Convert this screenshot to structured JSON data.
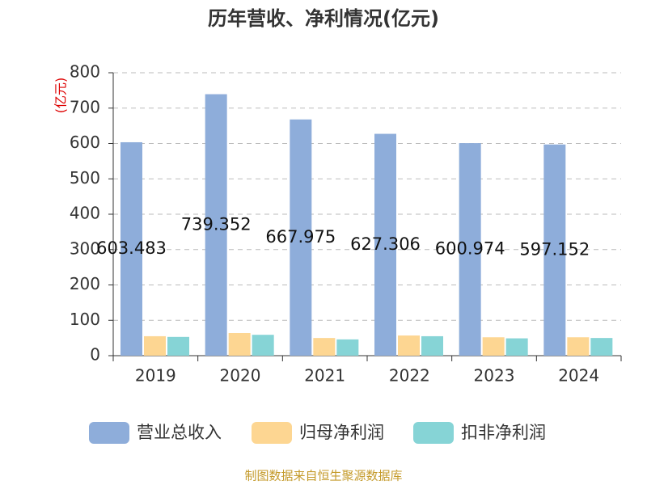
{
  "chart_data": {
    "type": "bar",
    "title": "历年营收、净利情况(亿元)",
    "ylabel": "(亿元)",
    "source": "制图数据来自恒生聚源数据库",
    "categories": [
      "2019",
      "2020",
      "2021",
      "2022",
      "2023",
      "2024"
    ],
    "series": [
      {
        "name": "营业总收入",
        "color": "#8eadda",
        "values": [
          603.483,
          739.352,
          667.975,
          627.306,
          600.974,
          597.152
        ],
        "show_labels": true
      },
      {
        "name": "归母净利润",
        "color": "#fdd692",
        "values": [
          55,
          64,
          50,
          57,
          52,
          52
        ]
      },
      {
        "name": "扣非净利润",
        "color": "#86d4d6",
        "values": [
          53,
          59,
          46,
          55,
          49,
          50
        ]
      }
    ],
    "ylim": [
      0,
      800
    ],
    "yticks": [
      0,
      100,
      200,
      300,
      400,
      500,
      600,
      700,
      800
    ],
    "grid": true
  }
}
